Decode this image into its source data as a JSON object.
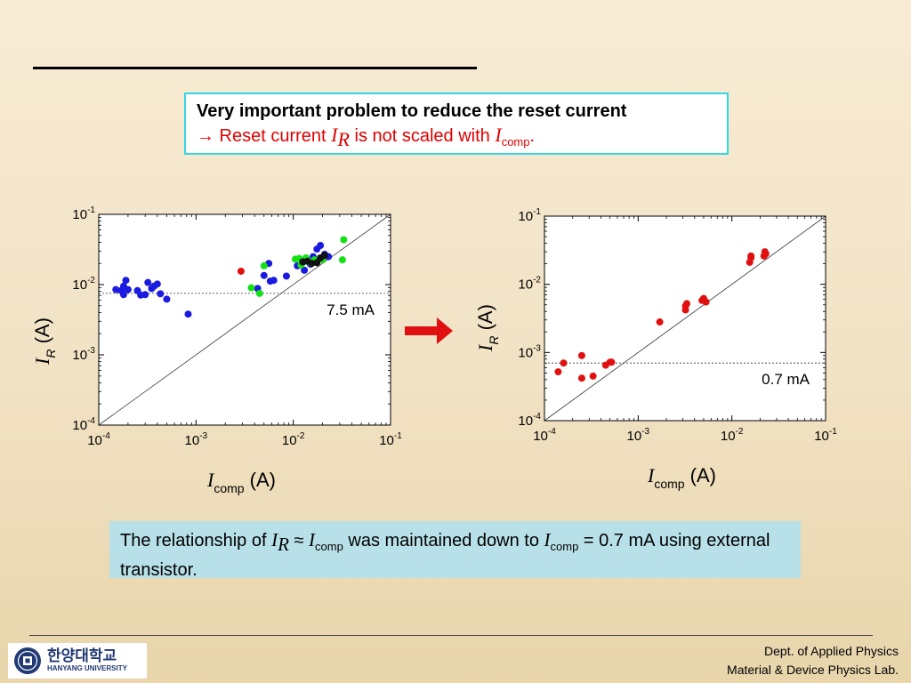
{
  "problem": {
    "title": "Very important problem to reduce the reset current",
    "arrow": "→",
    "pre": " Reset current ",
    "ir_main": "I",
    "ir_sub": "R",
    "mid": " is not scaled with ",
    "ic_main": "I",
    "ic_sub": "comp",
    "end": "."
  },
  "chart_data": [
    {
      "type": "scatter",
      "log_scale": true,
      "xlim": [
        0.0001,
        0.1
      ],
      "ylim": [
        0.0001,
        0.1
      ],
      "x_ticks": [
        {
          "base": "10",
          "exp": "-4"
        },
        {
          "base": "10",
          "exp": "-3"
        },
        {
          "base": "10",
          "exp": "-2"
        },
        {
          "base": "10",
          "exp": "-1"
        }
      ],
      "y_ticks": [
        {
          "base": "10",
          "exp": "-4"
        },
        {
          "base": "10",
          "exp": "-3"
        },
        {
          "base": "10",
          "exp": "-2"
        },
        {
          "base": "10",
          "exp": "-1"
        }
      ],
      "xlabel": {
        "main": "I",
        "sub": "comp",
        "unit": " (A)"
      },
      "ylabel": {
        "main": "I",
        "sub": "R",
        "unit": " (A)"
      },
      "reference_line": {
        "style": "solid",
        "from": [
          0.0001,
          0.0001
        ],
        "to": [
          0.1,
          0.1
        ]
      },
      "threshold": {
        "y": 0.0075,
        "style": "dotted",
        "label": "7.5 mA"
      },
      "series": [
        {
          "color": "#1a1ae0",
          "points": [
            [
              0.00015,
              0.0085
            ],
            [
              0.00017,
              0.0082
            ],
            [
              0.00018,
              0.0072
            ],
            [
              0.00018,
              0.0095
            ],
            [
              0.00019,
              0.0115
            ],
            [
              0.0002,
              0.0085
            ],
            [
              0.00025,
              0.0082
            ],
            [
              0.00027,
              0.0071
            ],
            [
              0.0003,
              0.0072
            ],
            [
              0.00032,
              0.0107
            ],
            [
              0.00035,
              0.0088
            ],
            [
              0.00037,
              0.0095
            ],
            [
              0.0004,
              0.0102
            ],
            [
              0.00043,
              0.0074
            ],
            [
              0.0005,
              0.0062
            ],
            [
              0.00083,
              0.0038
            ],
            [
              0.0043,
              0.0088
            ],
            [
              0.005,
              0.0135
            ],
            [
              0.0056,
              0.02
            ],
            [
              0.0058,
              0.0112
            ],
            [
              0.0063,
              0.0115
            ],
            [
              0.0085,
              0.0132
            ],
            [
              0.011,
              0.0185
            ],
            [
              0.013,
              0.016
            ],
            [
              0.015,
              0.0195
            ],
            [
              0.016,
              0.025
            ],
            [
              0.0175,
              0.032
            ],
            [
              0.019,
              0.036
            ],
            [
              0.021,
              0.027
            ],
            [
              0.023,
              0.025
            ]
          ]
        },
        {
          "color": "#14e014",
          "points": [
            [
              0.0037,
              0.009
            ],
            [
              0.0045,
              0.0075
            ],
            [
              0.005,
              0.0185
            ],
            [
              0.0105,
              0.023
            ],
            [
              0.0115,
              0.0235
            ],
            [
              0.012,
              0.019
            ],
            [
              0.0125,
              0.0205
            ],
            [
              0.0135,
              0.024
            ],
            [
              0.015,
              0.0205
            ],
            [
              0.0165,
              0.0225
            ],
            [
              0.0175,
              0.021
            ],
            [
              0.02,
              0.0225
            ],
            [
              0.032,
              0.0225
            ],
            [
              0.033,
              0.0435
            ]
          ]
        },
        {
          "color": "#e01010",
          "points": [
            [
              0.0029,
              0.0155
            ]
          ]
        },
        {
          "color": "#111111",
          "points": [
            [
              0.0125,
              0.021
            ],
            [
              0.014,
              0.0215
            ],
            [
              0.0155,
              0.02
            ],
            [
              0.0175,
              0.0205
            ],
            [
              0.019,
              0.024
            ],
            [
              0.021,
              0.026
            ]
          ]
        }
      ]
    },
    {
      "type": "scatter",
      "log_scale": true,
      "xlim": [
        0.0001,
        0.1
      ],
      "ylim": [
        0.0001,
        0.1
      ],
      "x_ticks": [
        {
          "base": "10",
          "exp": "-4"
        },
        {
          "base": "10",
          "exp": "-3"
        },
        {
          "base": "10",
          "exp": "-2"
        },
        {
          "base": "10",
          "exp": "-1"
        }
      ],
      "y_ticks": [
        {
          "base": "10",
          "exp": "-4"
        },
        {
          "base": "10",
          "exp": "-3"
        },
        {
          "base": "10",
          "exp": "-2"
        },
        {
          "base": "10",
          "exp": "-1"
        }
      ],
      "xlabel": {
        "main": "I",
        "sub": "comp",
        "unit": " (A)"
      },
      "ylabel": {
        "main": "I",
        "sub": "R",
        "unit": " (A)"
      },
      "reference_line": {
        "style": "solid",
        "from": [
          0.0001,
          0.0001
        ],
        "to": [
          0.1,
          0.1
        ]
      },
      "threshold": {
        "y": 0.0007,
        "style": "dotted",
        "label": "0.7 mA"
      },
      "series": [
        {
          "color": "#e01010",
          "points": [
            [
              0.00014,
              0.00052
            ],
            [
              0.00016,
              0.0007
            ],
            [
              0.00025,
              0.00042
            ],
            [
              0.00025,
              0.0009
            ],
            [
              0.00033,
              0.00045
            ],
            [
              0.00045,
              0.00065
            ],
            [
              0.0005,
              0.00072
            ],
            [
              0.00052,
              0.00072
            ],
            [
              0.0017,
              0.0028
            ],
            [
              0.0032,
              0.0042
            ],
            [
              0.0032,
              0.0048
            ],
            [
              0.0033,
              0.0052
            ],
            [
              0.0048,
              0.0058
            ],
            [
              0.005,
              0.0062
            ],
            [
              0.0053,
              0.0055
            ],
            [
              0.0155,
              0.021
            ],
            [
              0.016,
              0.0245
            ],
            [
              0.016,
              0.026
            ],
            [
              0.022,
              0.026
            ],
            [
              0.0225,
              0.03
            ],
            [
              0.023,
              0.028
            ]
          ]
        }
      ]
    }
  ],
  "arrow_color": "#e01010",
  "summary": {
    "t1": "The relationship of ",
    "ir_main": "I",
    "ir_sub": "R",
    "approx": " ≈ ",
    "ic_main": "I",
    "ic_sub": "comp",
    "t2": " was maintained down to ",
    "ic2_main": "I",
    "ic2_sub": "comp",
    "t3": " = 0.7 mA using external transistor."
  },
  "footer": {
    "logo_ko": "한양대학교",
    "logo_en": "HANYANG UNIVERSITY",
    "dept_line1": "Dept. of Applied Physics",
    "dept_line2": "Material & Device Physics Lab."
  }
}
